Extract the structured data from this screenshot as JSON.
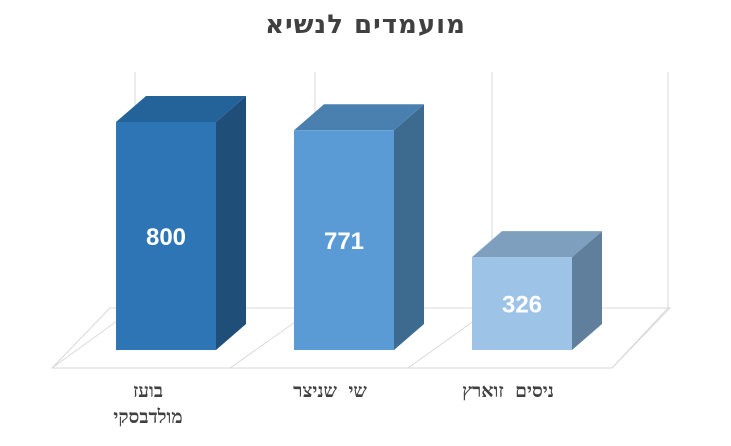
{
  "chart_data": {
    "type": "bar",
    "title": "מועמדים לנשיא",
    "categories": [
      "בועז מולדבסקי",
      "שי שניצר",
      "ניסים זוארץ"
    ],
    "values": [
      800,
      771,
      326
    ],
    "ylim": [
      0,
      900
    ],
    "grid": true,
    "style": "3d-column",
    "colors": {
      "front": [
        "#2e75b6",
        "#5b9bd5",
        "#9dc3e6"
      ],
      "side": [
        "#1f4e79",
        "#3d6a8f",
        "#607f9c"
      ],
      "top": [
        "#24629a",
        "#4a80b0",
        "#7f9fbe"
      ],
      "data_label": "#ffffff",
      "grid": "#d9d9d9"
    }
  }
}
